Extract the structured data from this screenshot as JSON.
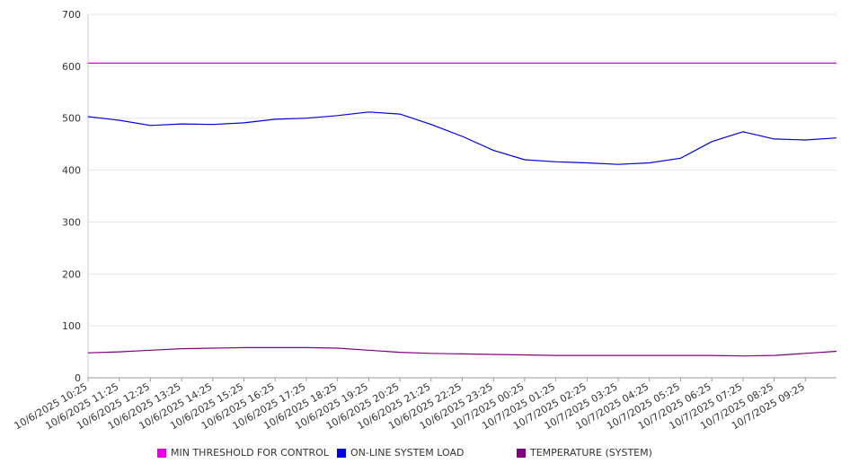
{
  "chart_data": {
    "type": "line",
    "title": "",
    "xlabel": "",
    "ylabel": "",
    "ylim": [
      0,
      700
    ],
    "yticks": [
      0,
      100,
      200,
      300,
      400,
      500,
      600,
      700
    ],
    "grid": true,
    "legend_position": "bottom",
    "x_tick_labels": [
      "10/6/2025 10:25",
      "10/6/2025 11:25",
      "10/6/2025 12:25",
      "10/6/2025 13:25",
      "10/6/2025 14:25",
      "10/6/2025 15:25",
      "10/6/2025 16:25",
      "10/6/2025 17:25",
      "10/6/2025 18:25",
      "10/6/2025 19:25",
      "10/6/2025 20:25",
      "10/6/2025 21:25",
      "10/6/2025 22:25",
      "10/6/2025 23:25",
      "10/7/2025 00:25",
      "10/7/2025 01:25",
      "10/7/2025 02:25",
      "10/7/2025 03:25",
      "10/7/2025 04:25",
      "10/7/2025 05:25",
      "10/7/2025 06:25",
      "10/7/2025 07:25",
      "10/7/2025 08:25",
      "10/7/2025 09:25"
    ],
    "x_range": [
      "10/6/2025 10:25",
      "10/7/2025 10:25"
    ],
    "series": [
      {
        "name": "MIN THRESHOLD FOR CONTROL",
        "color": "#e600e6",
        "x": [
          "10/6/2025 10:25",
          "10/7/2025 10:25"
        ],
        "values": [
          606,
          606
        ]
      },
      {
        "name": "ON-LINE SYSTEM LOAD",
        "color": "#0000e0",
        "x": [
          "10/6/2025 10:25",
          "10/6/2025 11:25",
          "10/6/2025 12:25",
          "10/6/2025 13:25",
          "10/6/2025 14:25",
          "10/6/2025 15:25",
          "10/6/2025 16:25",
          "10/6/2025 17:25",
          "10/6/2025 18:25",
          "10/6/2025 19:25",
          "10/6/2025 20:25",
          "10/6/2025 21:25",
          "10/6/2025 22:25",
          "10/6/2025 23:25",
          "10/7/2025 00:25",
          "10/7/2025 01:25",
          "10/7/2025 02:25",
          "10/7/2025 03:25",
          "10/7/2025 04:25",
          "10/7/2025 05:25",
          "10/7/2025 06:25",
          "10/7/2025 07:25",
          "10/7/2025 08:25",
          "10/7/2025 09:25",
          "10/7/2025 10:25"
        ],
        "values": [
          503,
          496,
          486,
          489,
          488,
          491,
          498,
          500,
          505,
          512,
          508,
          488,
          465,
          438,
          420,
          416,
          414,
          411,
          414,
          423,
          455,
          474,
          460,
          458,
          462
        ]
      },
      {
        "name": "TEMPERATURE (SYSTEM)",
        "color": "#800080",
        "x": [
          "10/6/2025 10:25",
          "10/6/2025 11:25",
          "10/6/2025 12:25",
          "10/6/2025 13:25",
          "10/6/2025 14:25",
          "10/6/2025 15:25",
          "10/6/2025 16:25",
          "10/6/2025 17:25",
          "10/6/2025 18:25",
          "10/6/2025 19:25",
          "10/6/2025 20:25",
          "10/6/2025 21:25",
          "10/6/2025 22:25",
          "10/6/2025 23:25",
          "10/7/2025 00:25",
          "10/7/2025 01:25",
          "10/7/2025 02:25",
          "10/7/2025 03:25",
          "10/7/2025 04:25",
          "10/7/2025 05:25",
          "10/7/2025 06:25",
          "10/7/2025 07:25",
          "10/7/2025 08:25",
          "10/7/2025 09:25",
          "10/7/2025 10:25"
        ],
        "values": [
          48,
          50,
          53,
          56,
          57,
          58,
          58,
          58,
          57,
          53,
          49,
          47,
          46,
          45,
          44,
          43,
          43,
          43,
          43,
          43,
          43,
          42,
          43,
          47,
          51
        ]
      }
    ]
  }
}
